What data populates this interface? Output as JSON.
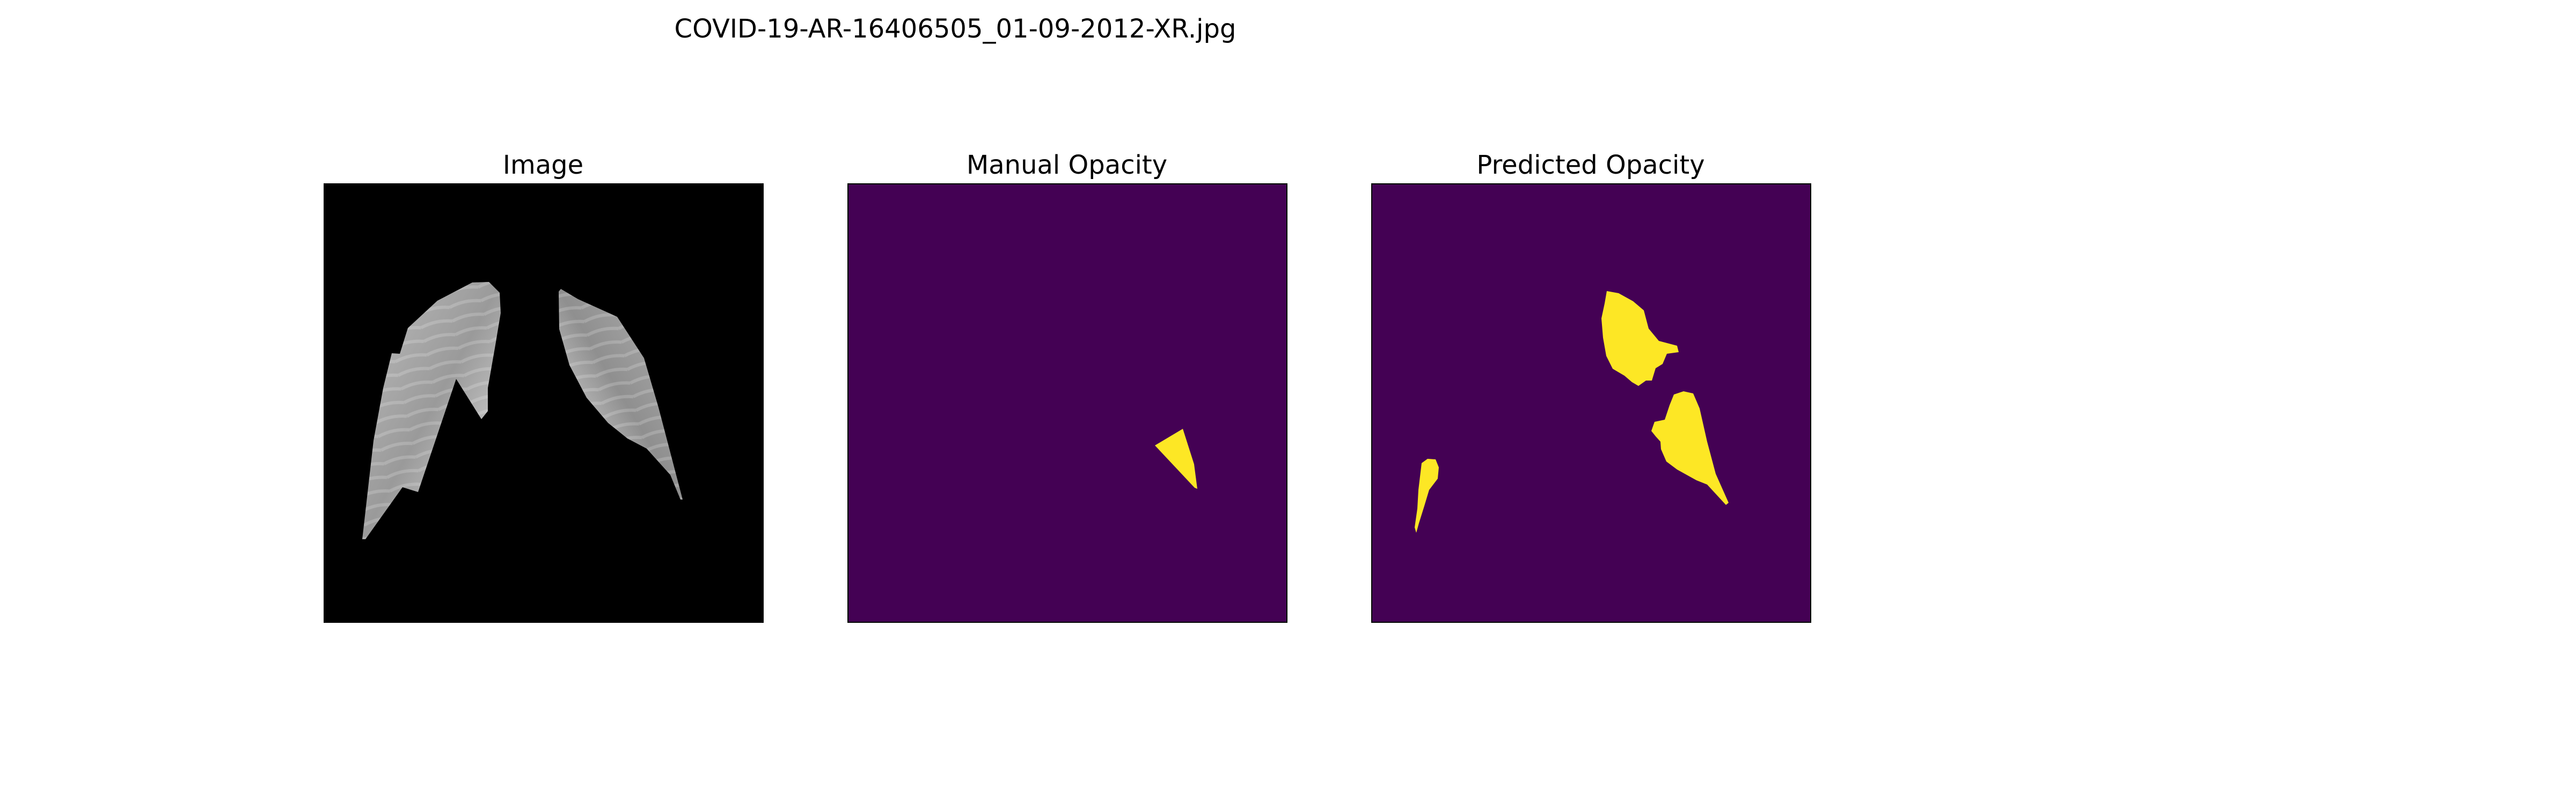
{
  "figure": {
    "title": "COVID-19-AR-16406505_01-09-2012-XR.jpg",
    "panels": [
      {
        "title": "Image",
        "content": "grayscale lung-masked chest x-ray"
      },
      {
        "title": "Manual Opacity",
        "content": "mask with one small triangular opacity region"
      },
      {
        "title": "Predicted Opacity",
        "content": "mask with three predicted opacity regions"
      }
    ],
    "colors": {
      "mask_background": "#440154",
      "mask_foreground": "#fde725",
      "image_background": "#000000"
    }
  }
}
